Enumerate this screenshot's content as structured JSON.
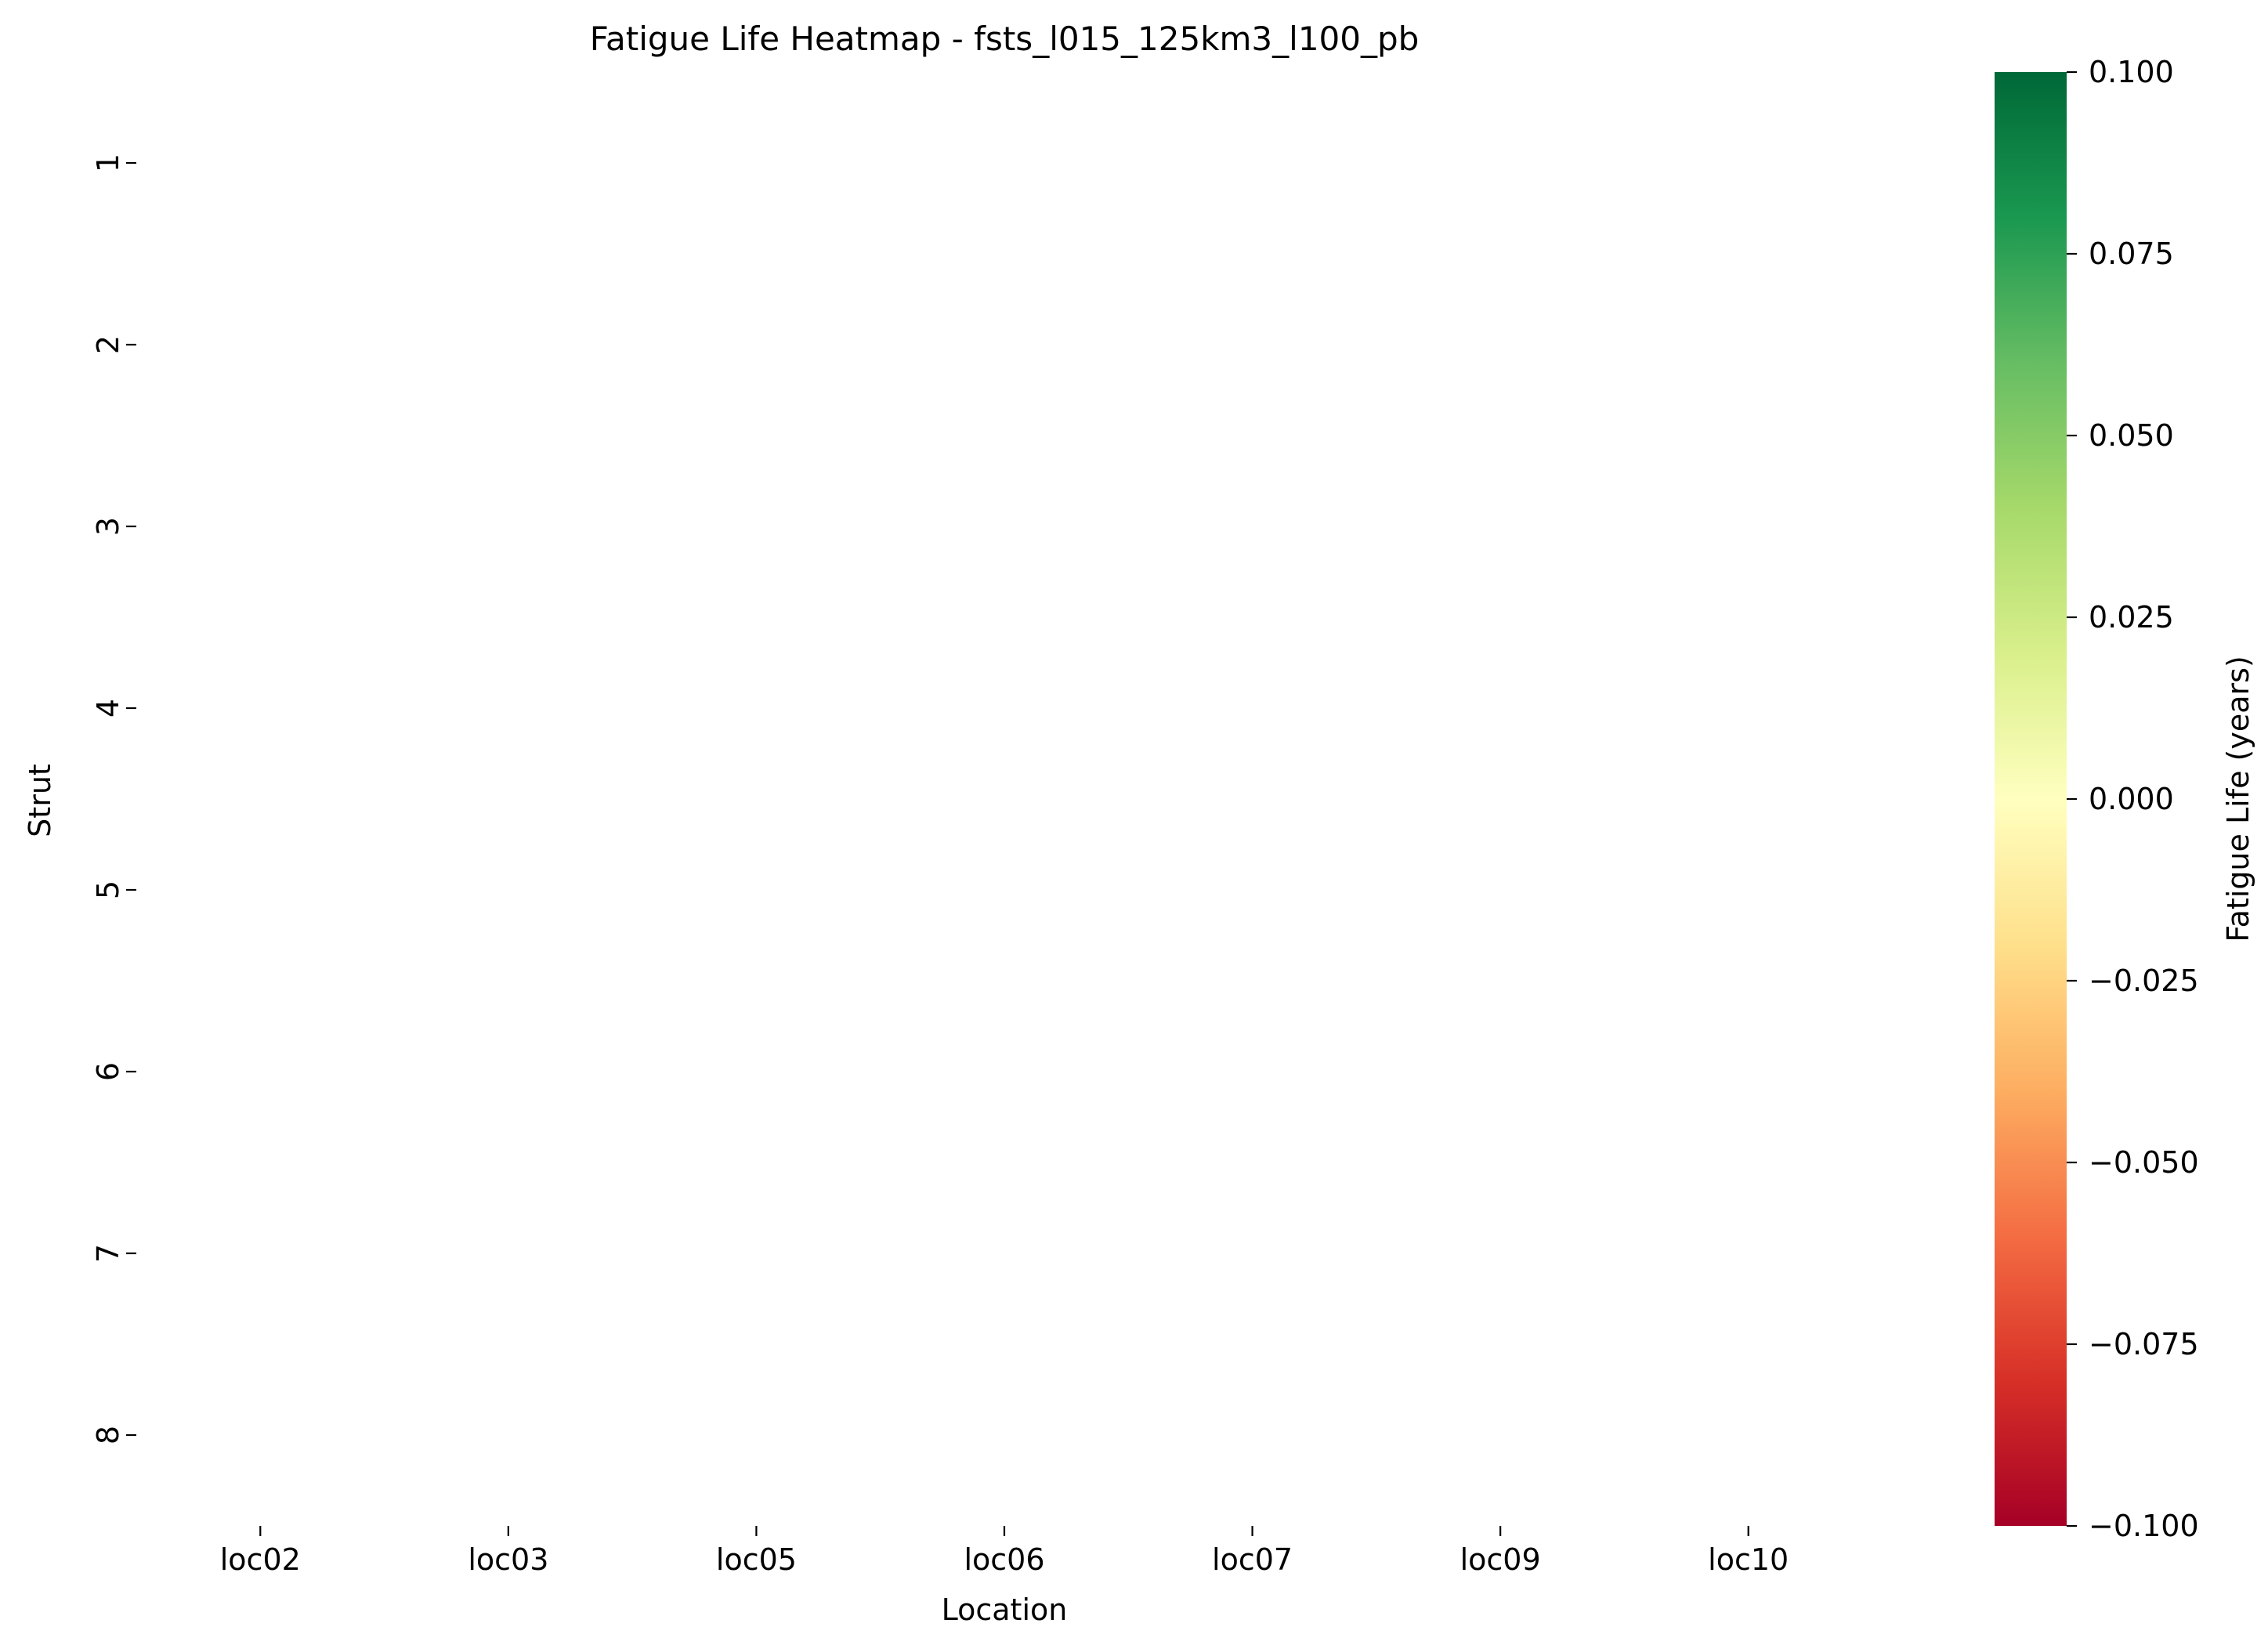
{
  "chart_data": {
    "type": "heatmap",
    "title": "Fatigue Life Heatmap - fsts_l015_125km3_l100_pb",
    "xlabel": "Location",
    "ylabel": "Strut",
    "x_categories": [
      "loc02",
      "loc03",
      "loc05",
      "loc06",
      "loc07",
      "loc09",
      "loc10"
    ],
    "y_categories": [
      "1",
      "2",
      "3",
      "4",
      "5",
      "6",
      "7",
      "8"
    ],
    "values": [],
    "grid": false,
    "colorbar": {
      "label": "Fatigue Life (years)",
      "range": [
        -0.1,
        0.1
      ],
      "ticks": [
        "0.100",
        "0.075",
        "0.050",
        "0.025",
        "0.000",
        "−0.025",
        "−0.050",
        "−0.075",
        "−0.100"
      ],
      "colormap": "RdYlGn",
      "stops": [
        "#a50026",
        "#d73027",
        "#f46d43",
        "#fdae61",
        "#fee08b",
        "#ffffbf",
        "#d9ef8b",
        "#a6d96a",
        "#66bd63",
        "#1a9850",
        "#006837"
      ]
    }
  }
}
